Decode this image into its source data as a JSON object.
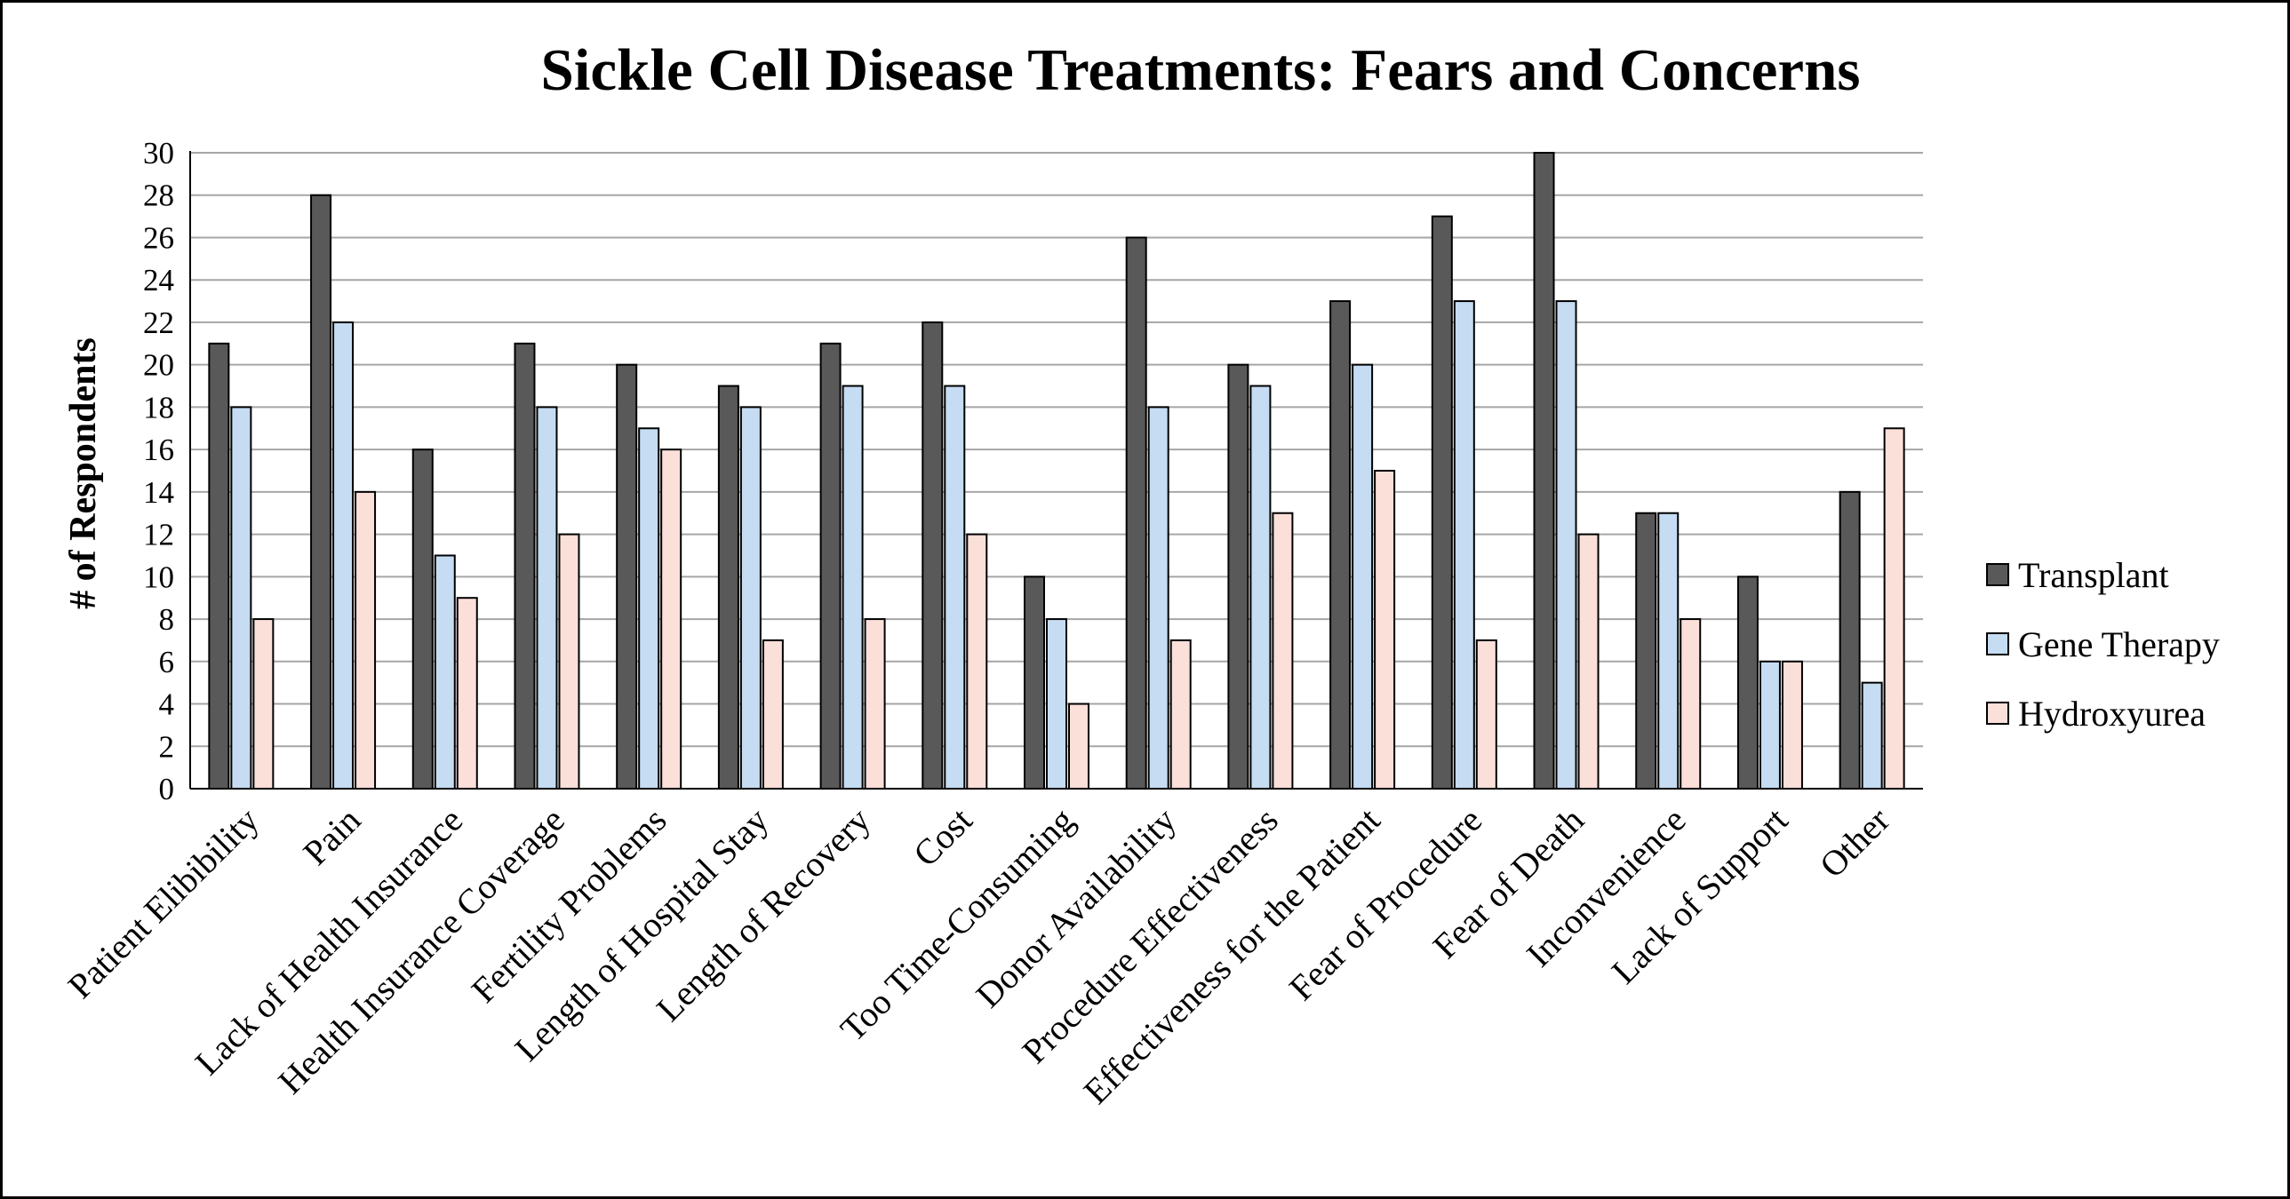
{
  "chart_data": {
    "type": "bar",
    "title": "Sickle Cell Disease Treatments: Fears and Concerns",
    "ylabel": "# of Respondents",
    "xlabel": "",
    "ylim": [
      0,
      30
    ],
    "yticks": [
      0,
      2,
      4,
      6,
      8,
      10,
      12,
      14,
      16,
      18,
      20,
      22,
      24,
      26,
      28,
      30
    ],
    "grid": true,
    "legend_position": "right",
    "categories": [
      "Patient Elibibility",
      "Pain",
      "Lack of Health Insurance",
      "Health Insurance Coverage",
      "Fertility Problems",
      "Length of Hospital Stay",
      "Length of Recovery",
      "Cost",
      "Too Time-Consuming",
      "Donor Availability",
      "Procedure Effectiveness",
      "Effectiveness for the Patient",
      "Fear of Procedure",
      "Fear of Death",
      "Inconvenience",
      "Lack of Support",
      "Other"
    ],
    "series": [
      {
        "name": "Transplant",
        "color": "#595959",
        "values": [
          21,
          28,
          16,
          21,
          20,
          19,
          21,
          22,
          10,
          26,
          20,
          23,
          27,
          30,
          13,
          10,
          14
        ]
      },
      {
        "name": "Gene Therapy",
        "color": "#c5dcf2",
        "values": [
          18,
          22,
          11,
          18,
          17,
          18,
          19,
          19,
          8,
          18,
          19,
          20,
          23,
          23,
          13,
          6,
          5
        ]
      },
      {
        "name": "Hydroxyurea",
        "color": "#fbdfd9",
        "values": [
          8,
          14,
          9,
          12,
          16,
          7,
          8,
          12,
          4,
          7,
          13,
          15,
          7,
          12,
          8,
          6,
          17
        ]
      }
    ]
  }
}
